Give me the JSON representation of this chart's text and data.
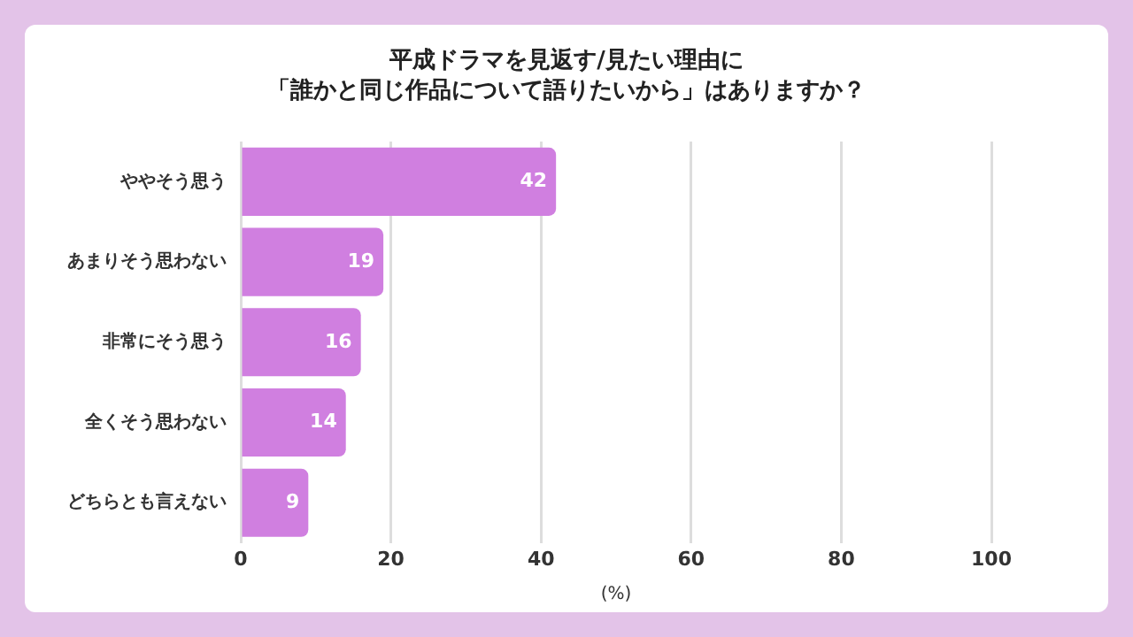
{
  "chart_data": {
    "type": "bar",
    "orientation": "horizontal",
    "title": "平成ドラマを見返す/見たい理由に「誰かと同じ作品について語りたいから」はありますか？",
    "xlabel": "(%)",
    "categories": [
      "ややそう思う",
      "あまりそう思わない",
      "非常にそう思う",
      "全くそう思わない",
      "どちらとも言えない"
    ],
    "values": [
      42,
      19,
      16,
      14,
      9
    ],
    "color": "#d07fe0",
    "xlim": [
      0,
      100
    ],
    "xticks": [
      0,
      20,
      40,
      60,
      80,
      100
    ],
    "grid": "x",
    "data_labels": true,
    "legend": false
  }
}
